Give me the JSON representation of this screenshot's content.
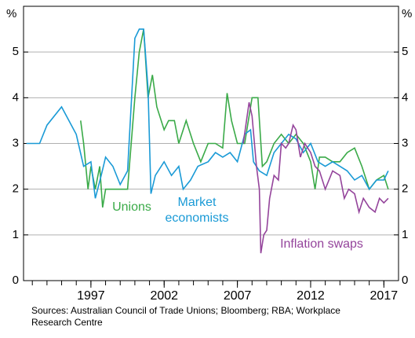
{
  "chart_data": {
    "type": "line",
    "y_unit": "%",
    "xlim": [
      1992.4,
      2018
    ],
    "xticks": [
      1997,
      2002,
      2007,
      2012,
      2017
    ],
    "xminor_ticks": [
      1993,
      1994,
      1995,
      1996,
      1997,
      1998,
      1999,
      2000,
      2001,
      2002,
      2003,
      2004,
      2005,
      2006,
      2007,
      2008,
      2009,
      2010,
      2011,
      2012,
      2013,
      2014,
      2015,
      2016,
      2017
    ],
    "ylim": [
      0,
      6
    ],
    "yticks": [
      0,
      1,
      2,
      3,
      4,
      5
    ],
    "grid": true,
    "series": [
      {
        "name": "Unions",
        "color": "#3aaa48",
        "x": [
          1996.3,
          1996.5,
          1996.8,
          1997,
          1997.3,
          1997.6,
          1997.8,
          1998,
          1998.5,
          1999,
          1999.5,
          2000,
          2000.3,
          2000.6,
          2000.9,
          2001.2,
          2001.5,
          2002,
          2002.3,
          2002.7,
          2003,
          2003.5,
          2004,
          2004.5,
          2005,
          2005.5,
          2006,
          2006.3,
          2006.6,
          2007,
          2007.5,
          2008,
          2008.4,
          2008.7,
          2009,
          2009.5,
          2010,
          2010.5,
          2011,
          2011.5,
          2012,
          2012.3,
          2012.6,
          2013,
          2013.5,
          2014,
          2014.5,
          2015,
          2015.5,
          2016,
          2016.5,
          2017,
          2017.3
        ],
        "values": [
          3.5,
          3.0,
          2.0,
          2.5,
          2.0,
          2.5,
          1.6,
          2.0,
          2.0,
          2.0,
          2.0,
          4.0,
          5.0,
          5.5,
          4.0,
          4.5,
          3.8,
          3.3,
          3.5,
          3.5,
          3.0,
          3.5,
          3.0,
          2.6,
          3.0,
          3.0,
          2.9,
          4.1,
          3.5,
          3.0,
          3.0,
          4.0,
          4.0,
          2.5,
          2.6,
          3.0,
          3.2,
          3.0,
          3.2,
          3.0,
          2.6,
          2.0,
          2.7,
          2.7,
          2.6,
          2.6,
          2.8,
          2.9,
          2.5,
          2.0,
          2.2,
          2.3,
          2.0
        ]
      },
      {
        "name": "Market economists",
        "color": "#1a9ad6",
        "x": [
          1992.6,
          1993.5,
          1994,
          1995,
          1996,
          1996.5,
          1997,
          1997.3,
          1997.7,
          1998,
          1998.5,
          1999,
          1999.5,
          2000,
          2000.3,
          2000.6,
          2000.9,
          2001.1,
          2001.4,
          2002,
          2002.5,
          2003,
          2003.3,
          2003.8,
          2004.3,
          2005,
          2005.5,
          2006,
          2006.5,
          2007,
          2007.5,
          2007.9,
          2008.1,
          2008.5,
          2009,
          2009.5,
          2010,
          2010.5,
          2011,
          2011.5,
          2012,
          2012.5,
          2013,
          2013.5,
          2014,
          2014.5,
          2015,
          2015.5,
          2016,
          2016.5,
          2017,
          2017.3
        ],
        "values": [
          3.0,
          3.0,
          3.4,
          3.8,
          3.2,
          2.5,
          2.6,
          1.8,
          2.3,
          2.7,
          2.5,
          2.1,
          2.4,
          5.3,
          5.5,
          5.5,
          4.2,
          1.9,
          2.3,
          2.6,
          2.3,
          2.5,
          2.0,
          2.2,
          2.5,
          2.6,
          2.8,
          2.7,
          2.8,
          2.6,
          3.2,
          3.3,
          2.6,
          2.4,
          2.3,
          2.8,
          3.0,
          3.2,
          3.1,
          2.8,
          3.0,
          2.6,
          2.5,
          2.6,
          2.5,
          2.4,
          2.2,
          2.3,
          2.0,
          2.2,
          2.2,
          2.4
        ]
      },
      {
        "name": "Inflation swaps",
        "color": "#94449b",
        "x": [
          2007.4,
          2007.8,
          2008,
          2008.3,
          2008.5,
          2008.6,
          2008.8,
          2009,
          2009.2,
          2009.5,
          2009.8,
          2010,
          2010.3,
          2010.5,
          2010.8,
          2011,
          2011.3,
          2011.6,
          2012,
          2012.3,
          2012.6,
          2013,
          2013.5,
          2014,
          2014.3,
          2014.6,
          2015,
          2015.3,
          2015.6,
          2016,
          2016.4,
          2016.7,
          2017,
          2017.3
        ],
        "values": [
          3.0,
          3.9,
          3.6,
          2.5,
          2.0,
          0.6,
          1.0,
          1.1,
          1.8,
          2.3,
          2.2,
          3.0,
          2.9,
          3.0,
          3.4,
          3.3,
          2.7,
          3.0,
          2.8,
          2.5,
          2.4,
          2.0,
          2.4,
          2.3,
          1.8,
          2.0,
          1.9,
          1.5,
          1.8,
          1.6,
          1.5,
          1.8,
          1.7,
          1.8
        ]
      }
    ],
    "source": "Sources: Australian Council of Trade Unions; Bloomberg; RBA; Workplace Research Centre"
  }
}
